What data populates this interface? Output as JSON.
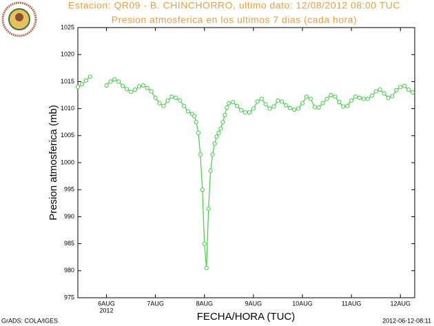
{
  "chart_data": {
    "type": "line",
    "title": "Estacion: QR09 - B. CHINCHORRO, ultimo dato: 12/08/2012 08:00 TUC",
    "subtitle": "Presion atmosferica en los ultimos 7 dias (cada hora)",
    "y_label": "Presion atmosferica (mb)",
    "x_label": "FECHA/HORA (TUC)",
    "x_year": "2012",
    "footer_left": "GrADS: COLA/IGES",
    "footer_right": "2012-06-12-08:11",
    "xlim": [
      -14,
      151
    ],
    "ylim": [
      975,
      1025
    ],
    "xticks": [
      {
        "value": 0,
        "label": "6AUG"
      },
      {
        "value": 24,
        "label": "7AUG"
      },
      {
        "value": 48,
        "label": "8AUG"
      },
      {
        "value": 72,
        "label": "9AUG"
      },
      {
        "value": 96,
        "label": "10AUG"
      },
      {
        "value": 120,
        "label": "11AUG"
      },
      {
        "value": 144,
        "label": "12AUG"
      }
    ],
    "yticks": [
      975,
      980,
      985,
      990,
      995,
      1000,
      1005,
      1010,
      1015,
      1020,
      1025
    ],
    "x": [
      -14,
      -12,
      -10,
      -8,
      -4,
      0,
      2,
      4,
      6,
      8,
      10,
      12,
      14,
      16,
      18,
      20,
      22,
      24,
      26,
      28,
      30,
      32,
      34,
      36,
      38,
      40,
      42,
      43,
      44,
      45,
      46,
      47,
      48,
      49,
      50,
      51,
      52,
      53,
      54,
      55,
      56,
      57,
      58,
      59,
      60,
      62,
      64,
      66,
      68,
      70,
      72,
      74,
      76,
      78,
      80,
      82,
      84,
      86,
      88,
      90,
      92,
      94,
      96,
      98,
      100,
      102,
      104,
      106,
      108,
      110,
      112,
      114,
      116,
      118,
      120,
      122,
      124,
      126,
      128,
      130,
      132,
      134,
      136,
      138,
      140,
      142,
      144,
      146,
      148,
      150
    ],
    "series": [
      {
        "name": "Presion",
        "color": "#40d040",
        "values": [
          1014.0,
          1014.5,
          1015.2,
          1015.9,
          null,
          1014.3,
          1015.0,
          1015.4,
          1015.0,
          1014.2,
          1013.6,
          1013.1,
          1013.5,
          1014.1,
          1014.3,
          1013.8,
          1013.2,
          1012.0,
          1011.0,
          1010.5,
          1011.5,
          1012.2,
          1012.0,
          1011.5,
          1010.5,
          1009.5,
          1009.0,
          1008.6,
          1007.5,
          1005.5,
          1001.5,
          995.0,
          985.0,
          980.5,
          991.5,
          998.5,
          1001.5,
          1003.5,
          1004.8,
          1005.5,
          1006.3,
          1007.5,
          1008.8,
          1010.2,
          1011.0,
          1011.2,
          1010.5,
          1009.7,
          1009.3,
          1009.3,
          1010.0,
          1011.3,
          1011.8,
          1010.8,
          1010.0,
          1010.4,
          1011.5,
          1011.3,
          1010.6,
          1010.1,
          1009.8,
          1010.0,
          1011.0,
          1012.2,
          1011.8,
          1010.3,
          1010.2,
          1011.0,
          1011.8,
          1012.5,
          1012.2,
          1011.2,
          1010.4,
          1010.5,
          1011.5,
          1012.2,
          1012.0,
          1011.8,
          1011.8,
          1012.4,
          1013.2,
          1013.5,
          1012.8,
          1012.0,
          1012.3,
          1013.4,
          1014.0,
          1014.2,
          1013.5,
          1013.0
        ]
      }
    ]
  }
}
